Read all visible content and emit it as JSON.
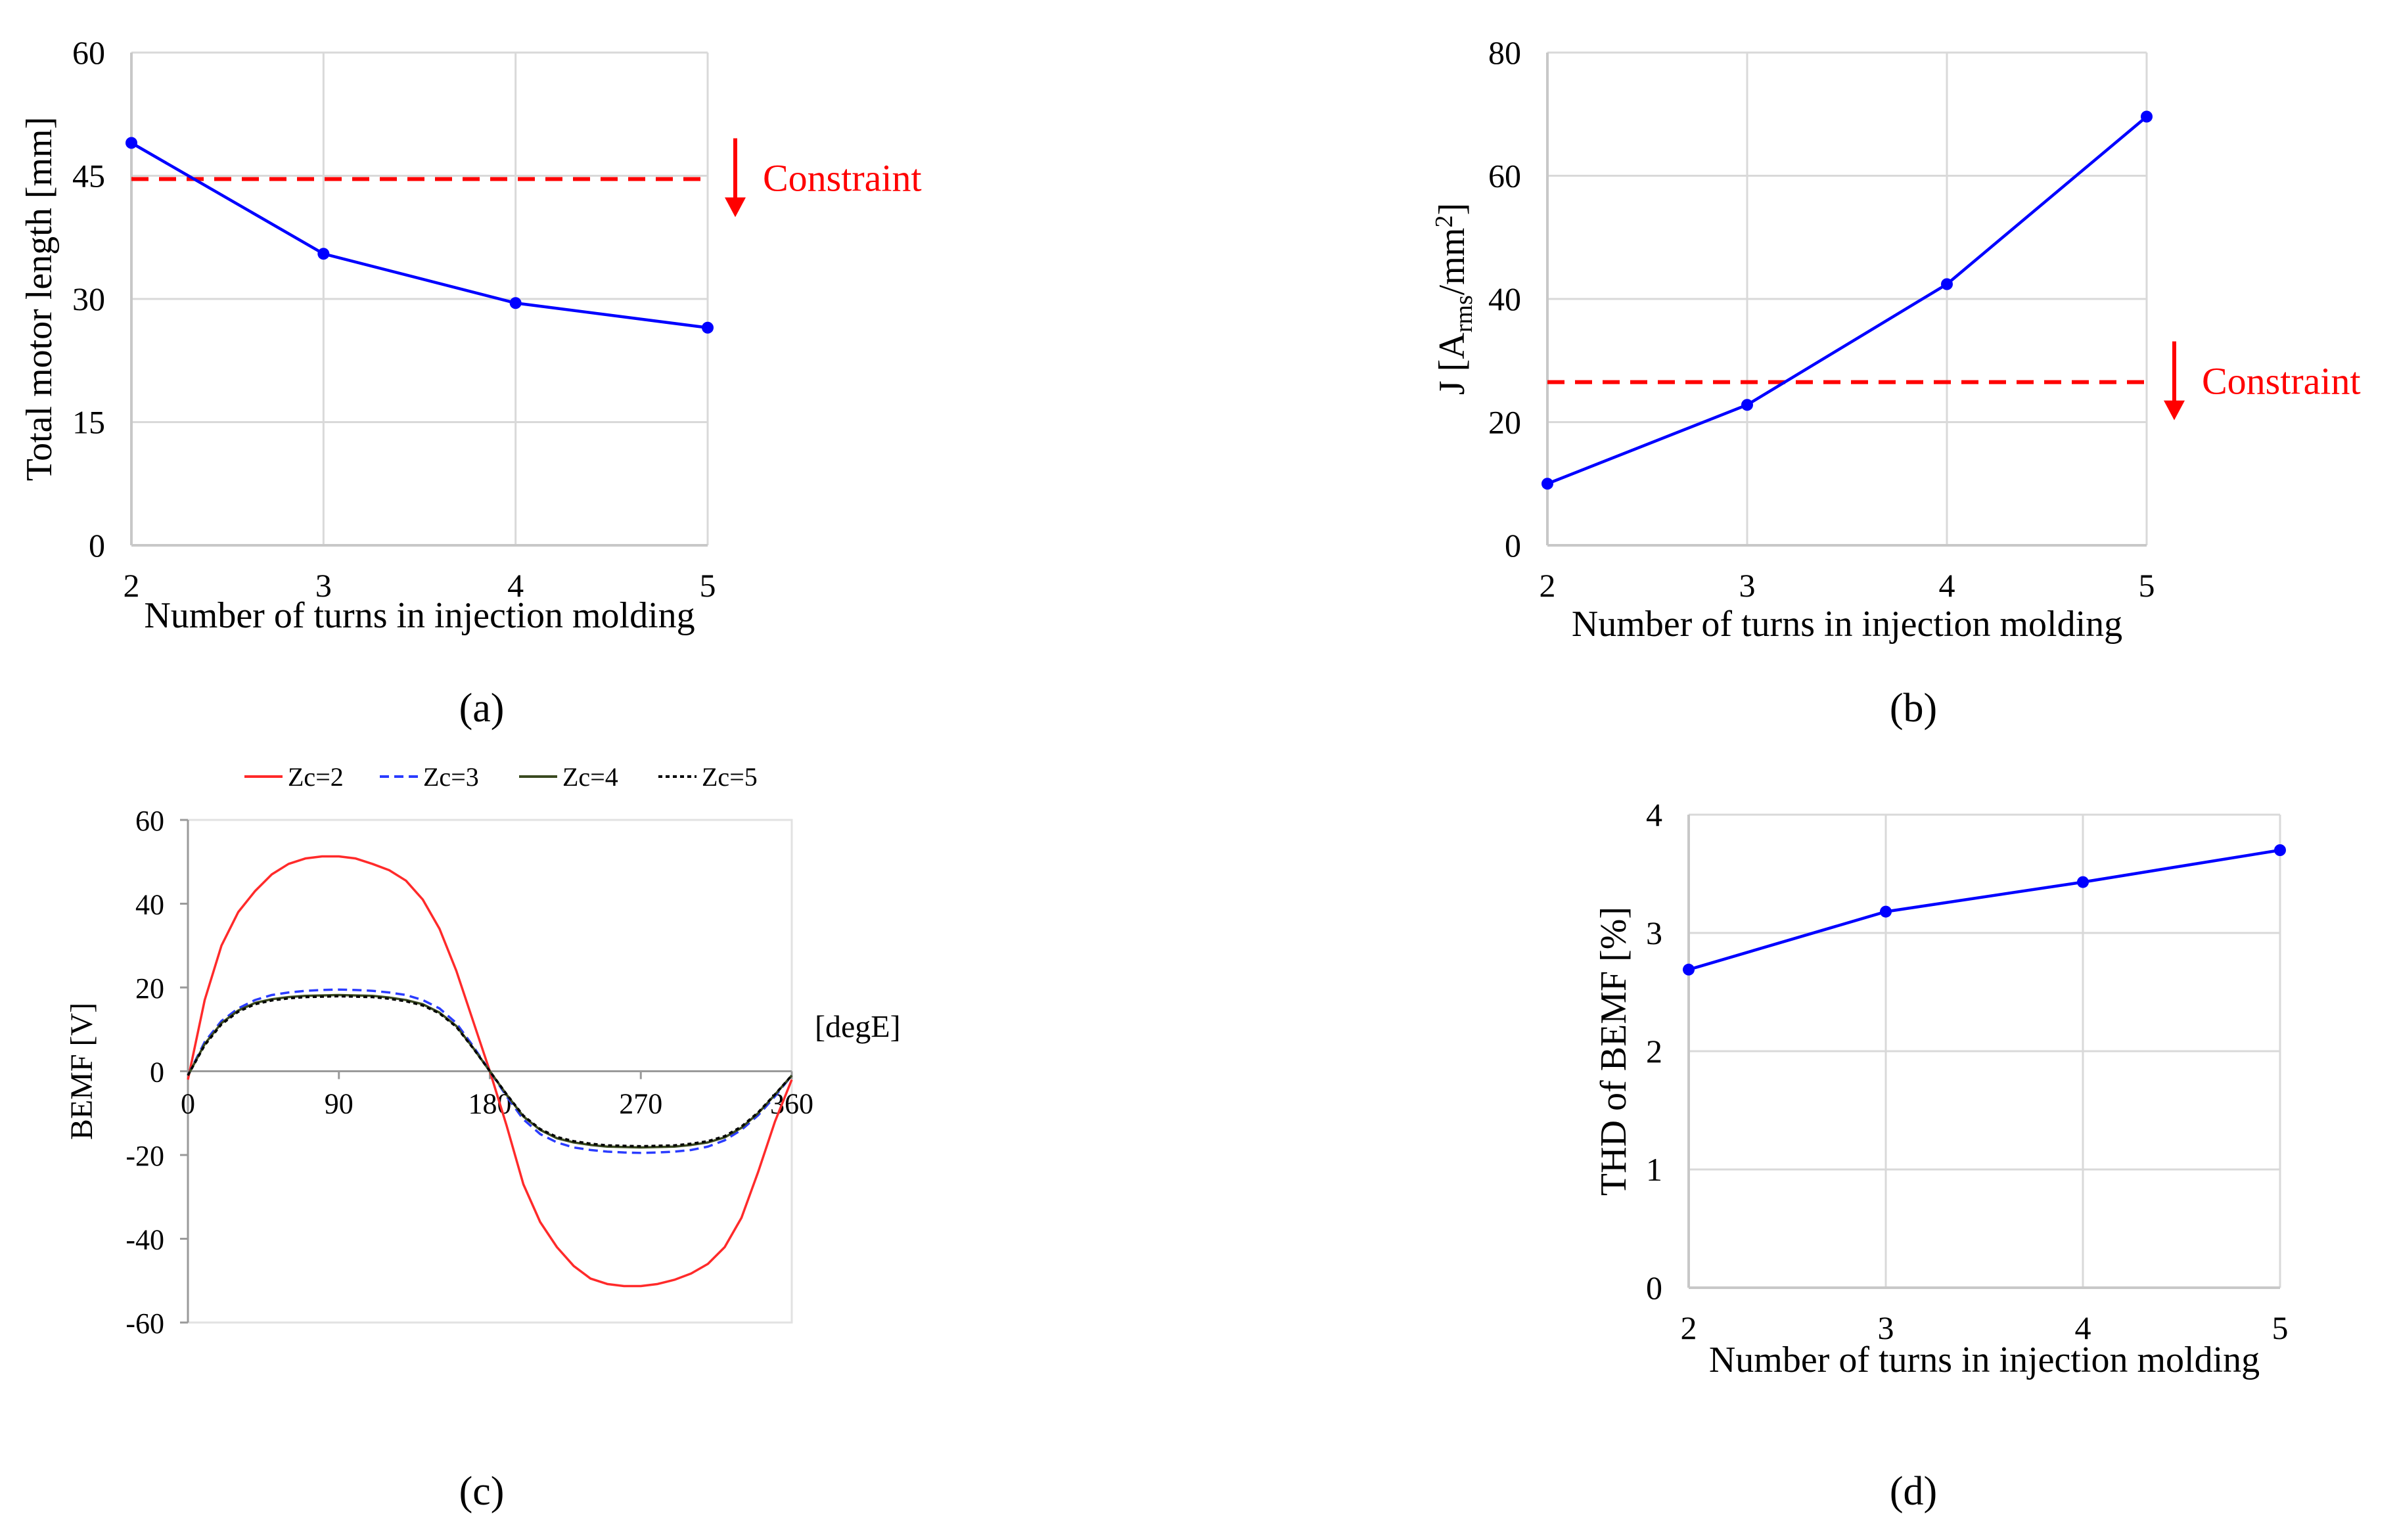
{
  "chart_data": [
    {
      "panel": "a",
      "panel_label": "(a)",
      "type": "line",
      "xlabel": "Number of turns in injection molding",
      "ylabel": "Total motor length [mm]",
      "x": [
        2,
        3,
        4,
        5
      ],
      "xticks": [
        "2",
        "3",
        "4",
        "5"
      ],
      "yticks": [
        "0",
        "15",
        "30",
        "45",
        "60"
      ],
      "xlim": [
        2,
        5
      ],
      "ylim": [
        0,
        60
      ],
      "grid": true,
      "series": [
        {
          "name": "Total motor length",
          "values": [
            49.0,
            35.5,
            29.5,
            26.5
          ],
          "color": "#0000ff",
          "style": "solid",
          "markers": true
        }
      ],
      "constraint": {
        "value": 44.6,
        "label": "Constraint",
        "color": "#ff0000",
        "arrow": "down"
      }
    },
    {
      "panel": "b",
      "panel_label": "(b)",
      "type": "line",
      "xlabel": "Number of turns in injection molding",
      "ylabel": {
        "base": "J [A",
        "sub": "rms",
        "mid": "/mm",
        "sup": "2",
        "end": "]"
      },
      "x": [
        2,
        3,
        4,
        5
      ],
      "xticks": [
        "2",
        "3",
        "4",
        "5"
      ],
      "yticks": [
        "0",
        "20",
        "40",
        "60",
        "80"
      ],
      "xlim": [
        2,
        5
      ],
      "ylim": [
        0,
        80
      ],
      "grid": true,
      "series": [
        {
          "name": "J",
          "values": [
            10.0,
            22.8,
            42.4,
            69.6
          ],
          "color": "#0000ff",
          "style": "solid",
          "markers": true
        }
      ],
      "constraint": {
        "value": 26.5,
        "label": "Constraint",
        "color": "#ff0000",
        "arrow": "down"
      }
    },
    {
      "panel": "c",
      "panel_label": "(c)",
      "type": "line",
      "xlabel": "[degE]",
      "ylabel": "BEMF [V]",
      "x": [
        0,
        10,
        20,
        30,
        40,
        50,
        60,
        70,
        80,
        90,
        100,
        110,
        120,
        130,
        140,
        150,
        160,
        170,
        180,
        190,
        200,
        210,
        220,
        230,
        240,
        250,
        260,
        270,
        280,
        290,
        300,
        310,
        320,
        330,
        340,
        350,
        360
      ],
      "xticks": [
        "0",
        "90",
        "180",
        "270",
        "360"
      ],
      "xtick_values": [
        0,
        90,
        180,
        270,
        360
      ],
      "yticks": [
        "-60",
        "-40",
        "-20",
        "0",
        "20",
        "40",
        "60"
      ],
      "ytick_values": [
        -60,
        -40,
        -20,
        0,
        20,
        40,
        60
      ],
      "xlim": [
        0,
        360
      ],
      "ylim": [
        -60,
        60
      ],
      "grid": false,
      "legend_position": "top",
      "series": [
        {
          "name": "Zc=2",
          "color": "#ff2a2a",
          "style": "solid",
          "values": [
            -2,
            17,
            30,
            38,
            43,
            47,
            49.5,
            50.8,
            51.3,
            51.3,
            50.8,
            49.5,
            48,
            45.5,
            41,
            34,
            24,
            12,
            0,
            -13,
            -27,
            -36,
            -42,
            -46.5,
            -49.5,
            -50.8,
            -51.3,
            -51.3,
            -50.8,
            -49.8,
            -48.3,
            -46,
            -42,
            -35,
            -24,
            -12,
            -2
          ]
        },
        {
          "name": "Zc=3",
          "color": "#2a3cff",
          "style": "dashed",
          "values": [
            -1,
            7,
            12,
            15,
            17,
            18.2,
            18.8,
            19.2,
            19.4,
            19.5,
            19.4,
            19.2,
            18.8,
            18.2,
            17,
            15,
            11.5,
            6,
            0,
            -6,
            -11.5,
            -15,
            -17,
            -18.2,
            -18.8,
            -19.2,
            -19.4,
            -19.5,
            -19.4,
            -19.2,
            -18.8,
            -18,
            -16.5,
            -14,
            -10.5,
            -6,
            -1
          ]
        },
        {
          "name": "Zc=4",
          "color": "#3a4a20",
          "style": "solid",
          "values": [
            -1,
            6.5,
            11.5,
            14.5,
            16.3,
            17.2,
            17.7,
            18,
            18.1,
            18.2,
            18.1,
            18,
            17.6,
            17,
            16,
            14,
            10.8,
            5.6,
            0,
            -5.6,
            -10.8,
            -14,
            -16,
            -17,
            -17.6,
            -18,
            -18.1,
            -18.2,
            -18.1,
            -18,
            -17.6,
            -17,
            -15.8,
            -13.5,
            -10,
            -5.6,
            -1
          ]
        },
        {
          "name": "Zc=5",
          "color": "#000000",
          "style": "dotted",
          "values": [
            -1,
            6.2,
            11.2,
            14.2,
            16,
            16.9,
            17.4,
            17.7,
            17.8,
            17.9,
            17.8,
            17.7,
            17.3,
            16.7,
            15.7,
            13.8,
            10.6,
            5.5,
            0,
            -5.5,
            -10.6,
            -13.8,
            -15.7,
            -16.7,
            -17.3,
            -17.7,
            -17.8,
            -17.9,
            -17.8,
            -17.7,
            -17.3,
            -16.7,
            -15.5,
            -13.2,
            -9.8,
            -5.5,
            -1
          ]
        }
      ]
    },
    {
      "panel": "d",
      "panel_label": "(d)",
      "type": "line",
      "xlabel": "Number of turns in injection molding",
      "ylabel": "THD of BEMF [%]",
      "x": [
        2,
        3,
        4,
        5
      ],
      "xticks": [
        "2",
        "3",
        "4",
        "5"
      ],
      "yticks": [
        "0",
        "1",
        "2",
        "3",
        "4"
      ],
      "xlim": [
        2,
        5
      ],
      "ylim": [
        0,
        4
      ],
      "grid": true,
      "series": [
        {
          "name": "THD of BEMF",
          "values": [
            2.69,
            3.18,
            3.43,
            3.7
          ],
          "color": "#0000ff",
          "style": "solid",
          "markers": true
        }
      ]
    }
  ]
}
